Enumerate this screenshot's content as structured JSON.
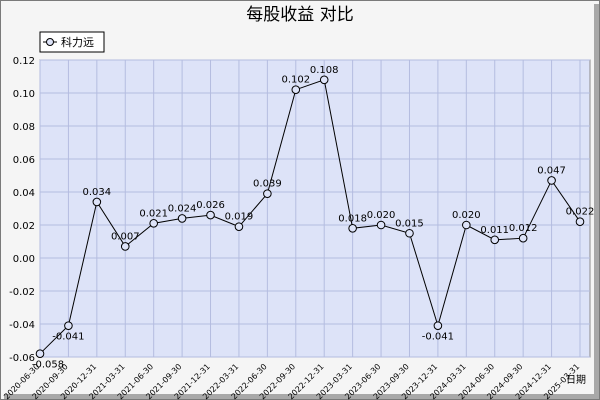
{
  "chart_data": {
    "type": "line",
    "title": "每股收益  对比",
    "xlabel": "日期",
    "ylabel": "",
    "ylim": [
      -0.06,
      0.12
    ],
    "yticks": [
      "0.12",
      "0.10",
      "0.08",
      "0.06",
      "0.04",
      "0.02",
      "0.00",
      "-0.02",
      "-0.04",
      "-0.06"
    ],
    "grid": true,
    "legend_position": "top-left",
    "categories": [
      "2020-06-30",
      "2020-09-30",
      "2020-12-31",
      "2021-03-31",
      "2021-06-30",
      "2021-09-30",
      "2021-12-31",
      "2022-03-31",
      "2022-06-30",
      "2022-09-30",
      "2022-12-31",
      "2023-03-31",
      "2023-06-30",
      "2023-09-30",
      "2023-12-31",
      "2024-03-31",
      "2024-06-30",
      "2024-09-30",
      "2024-12-31",
      "2025-03-31"
    ],
    "series": [
      {
        "name": "科力远",
        "values": [
          -0.058,
          -0.041,
          0.034,
          0.007,
          0.021,
          0.024,
          0.026,
          0.019,
          0.039,
          0.102,
          0.108,
          0.018,
          0.02,
          0.015,
          -0.041,
          0.02,
          0.011,
          0.012,
          0.047,
          0.022
        ],
        "labels": [
          "-0.058",
          "-0.041",
          "0.034",
          "0.007",
          "0.021",
          "0.024",
          "0.026",
          "0.019",
          "0.039",
          "0.102",
          "0.108",
          "0.018",
          "0.020",
          "0.015",
          "-0.041",
          "0.020",
          "0.011",
          "0.012",
          "0.047",
          "0.022"
        ]
      }
    ],
    "colors": {
      "plot_bg": "#dde3f8",
      "grid": "#b4bce0",
      "line": "#000000",
      "frame_bg": "#f5f5f5"
    }
  }
}
